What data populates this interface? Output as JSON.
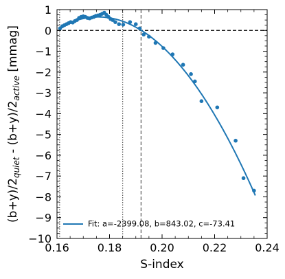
{
  "chart_data": {
    "type": "scatter",
    "xlabel": "S-index",
    "ylabel_parts": [
      "(b+y)/2",
      "quiet",
      " - (b+y)/2",
      "active",
      " [mmag]"
    ],
    "xlim": [
      0.16,
      0.24
    ],
    "ylim": [
      -10,
      1
    ],
    "xticks": [
      0.16,
      0.18,
      0.2,
      0.22,
      0.24
    ],
    "xtick_labels": [
      "0.16",
      "0.18",
      "0.20",
      "0.22",
      "0.24"
    ],
    "yticks": [
      1,
      0,
      -1,
      -2,
      -3,
      -4,
      -5,
      -6,
      -7,
      -8,
      -9,
      -10
    ],
    "ytick_labels": [
      "1",
      "0",
      "−1",
      "−2",
      "−3",
      "−4",
      "−5",
      "−6",
      "−7",
      "−8",
      "−9",
      "−10"
    ],
    "legend_location": "lower-left",
    "color": "#1f77b4",
    "points": [
      {
        "x": 0.1612,
        "y": 0.1
      },
      {
        "x": 0.162,
        "y": 0.2
      },
      {
        "x": 0.1628,
        "y": 0.25
      },
      {
        "x": 0.1636,
        "y": 0.3
      },
      {
        "x": 0.1644,
        "y": 0.35
      },
      {
        "x": 0.1652,
        "y": 0.4
      },
      {
        "x": 0.166,
        "y": 0.38
      },
      {
        "x": 0.1668,
        "y": 0.45
      },
      {
        "x": 0.1676,
        "y": 0.5
      },
      {
        "x": 0.1684,
        "y": 0.6
      },
      {
        "x": 0.1692,
        "y": 0.65
      },
      {
        "x": 0.17,
        "y": 0.68
      },
      {
        "x": 0.1708,
        "y": 0.65
      },
      {
        "x": 0.1716,
        "y": 0.6
      },
      {
        "x": 0.1724,
        "y": 0.58
      },
      {
        "x": 0.1732,
        "y": 0.62
      },
      {
        "x": 0.174,
        "y": 0.65
      },
      {
        "x": 0.1748,
        "y": 0.7
      },
      {
        "x": 0.1756,
        "y": 0.72
      },
      {
        "x": 0.1764,
        "y": 0.75
      },
      {
        "x": 0.1772,
        "y": 0.8
      },
      {
        "x": 0.178,
        "y": 0.85
      },
      {
        "x": 0.1788,
        "y": 0.75
      },
      {
        "x": 0.1796,
        "y": 0.65
      },
      {
        "x": 0.1804,
        "y": 0.55
      },
      {
        "x": 0.1812,
        "y": 0.5
      },
      {
        "x": 0.1822,
        "y": 0.4
      },
      {
        "x": 0.1836,
        "y": 0.3
      },
      {
        "x": 0.1852,
        "y": 0.28
      },
      {
        "x": 0.1878,
        "y": 0.4
      },
      {
        "x": 0.19,
        "y": 0.3
      },
      {
        "x": 0.1915,
        "y": 0.1
      },
      {
        "x": 0.193,
        "y": -0.2
      },
      {
        "x": 0.195,
        "y": -0.3
      },
      {
        "x": 0.1975,
        "y": -0.6
      },
      {
        "x": 0.2005,
        "y": -0.85
      },
      {
        "x": 0.204,
        "y": -1.15
      },
      {
        "x": 0.208,
        "y": -1.65
      },
      {
        "x": 0.211,
        "y": -2.1
      },
      {
        "x": 0.2125,
        "y": -2.45
      },
      {
        "x": 0.215,
        "y": -3.4
      },
      {
        "x": 0.221,
        "y": -3.7
      },
      {
        "x": 0.228,
        "y": -5.3
      },
      {
        "x": 0.231,
        "y": -7.1
      },
      {
        "x": 0.235,
        "y": -7.7
      }
    ],
    "fit": {
      "a": -2399.08,
      "b": 843.02,
      "c": -73.41,
      "x_range": [
        0.1605,
        0.2355
      ],
      "label": "Fit: a=-2399.08, b=843.02, c=-73.41"
    },
    "reference_lines": [
      {
        "orientation": "horizontal",
        "value": 0,
        "style": "dashed",
        "color": "#000000"
      },
      {
        "orientation": "vertical",
        "value": 0.161,
        "style": "dotted",
        "color": "#555555"
      },
      {
        "orientation": "vertical",
        "value": 0.185,
        "style": "dotted",
        "color": "#555555"
      },
      {
        "orientation": "vertical",
        "value": 0.192,
        "style": "dashed",
        "color": "#555555"
      }
    ]
  }
}
